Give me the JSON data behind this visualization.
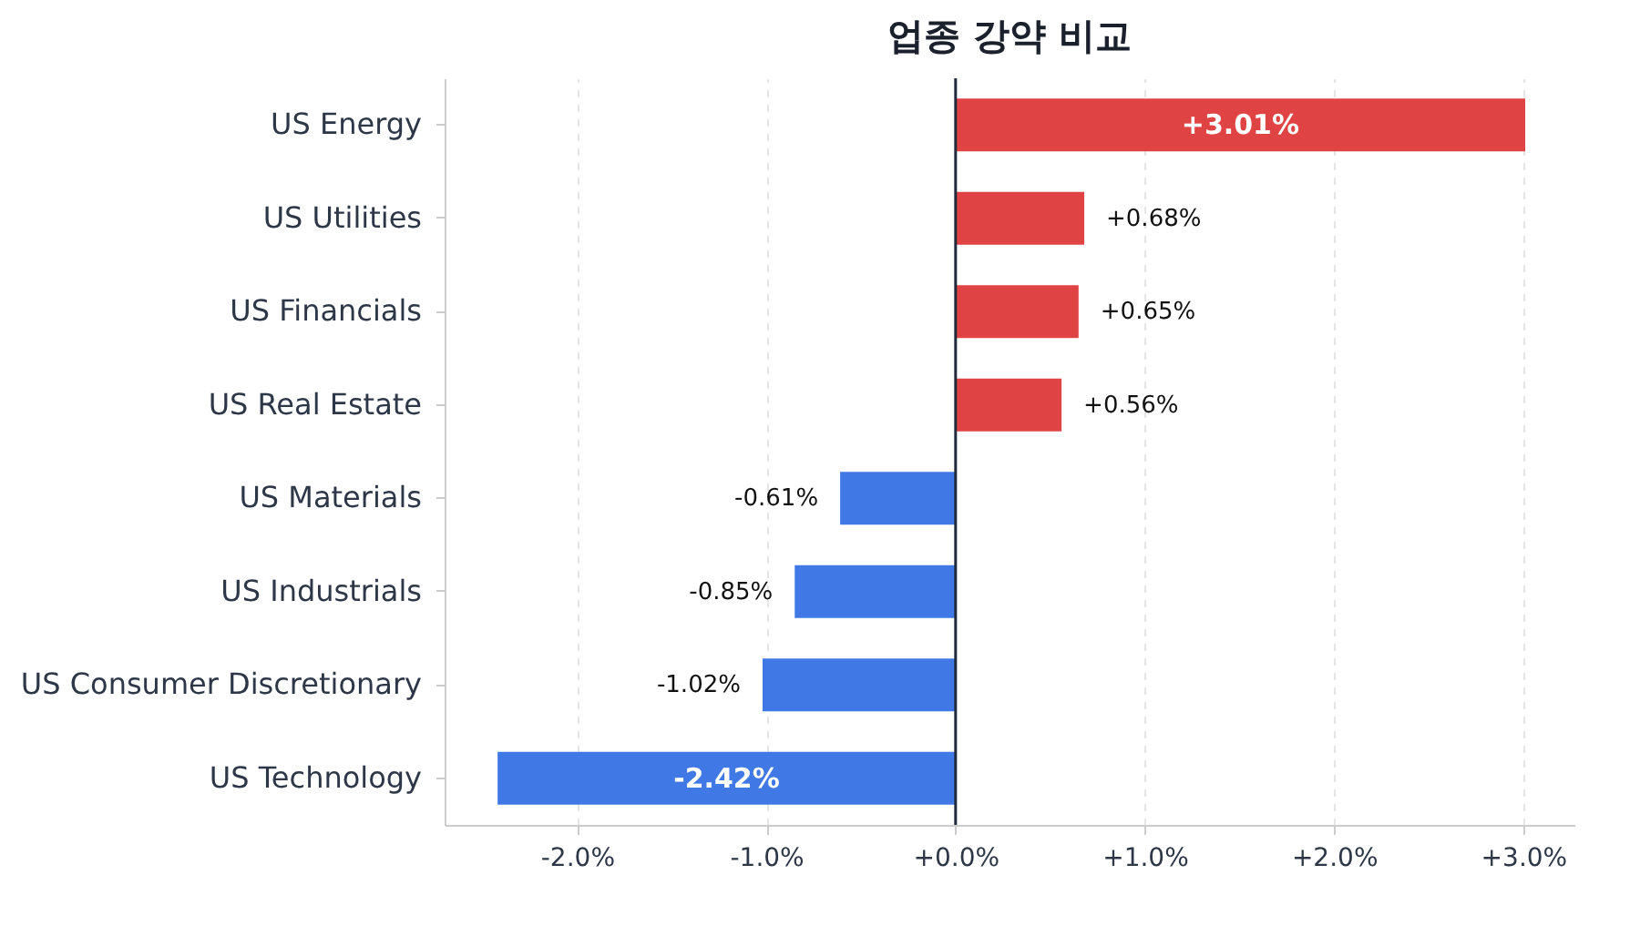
{
  "chart_data": {
    "type": "bar",
    "orientation": "horizontal",
    "title": "업종 강약 비교",
    "categories": [
      "US Energy",
      "US Utilities",
      "US Financials",
      "US Real Estate",
      "US Materials",
      "US Industrials",
      "US Consumer Discretionary",
      "US Technology"
    ],
    "values": [
      3.01,
      0.68,
      0.65,
      0.56,
      -0.61,
      -0.85,
      -1.02,
      -2.42
    ],
    "colors": [
      "#e04343",
      "#e04343",
      "#e04343",
      "#e04343",
      "#4079e6",
      "#4079e6",
      "#4079e6",
      "#4079e6"
    ],
    "value_labels": [
      "+3.01%",
      "+0.68%",
      "+0.65%",
      "+0.56%",
      "-0.61%",
      "-0.85%",
      "-1.02%",
      "-2.42%"
    ],
    "xlim": [
      -2.7,
      3.27
    ],
    "xticks": [
      {
        "value": -2,
        "label": "-2.0%"
      },
      {
        "value": -1,
        "label": "-1.0%"
      },
      {
        "value": 0,
        "label": "+0.0%"
      },
      {
        "value": 1,
        "label": "+1.0%"
      },
      {
        "value": 2,
        "label": "+2.0%"
      },
      {
        "value": 3,
        "label": "+3.0%"
      }
    ],
    "grid": "x",
    "ref_lines": [
      {
        "axis": "x",
        "value": 0,
        "color": "#1f2a3a"
      }
    ]
  }
}
